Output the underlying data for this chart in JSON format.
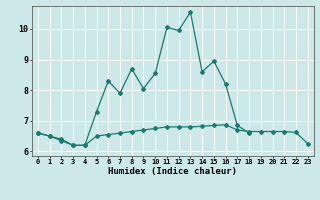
{
  "xlabel": "Humidex (Indice chaleur)",
  "x_values": [
    0,
    1,
    2,
    3,
    4,
    5,
    6,
    7,
    8,
    9,
    10,
    11,
    12,
    13,
    14,
    15,
    16,
    17,
    18,
    19,
    20,
    21,
    22,
    23
  ],
  "line1_y": [
    6.6,
    6.5,
    6.4,
    6.2,
    6.2,
    6.5,
    6.55,
    6.6,
    6.65,
    6.7,
    6.75,
    6.8,
    6.8,
    6.8,
    6.82,
    6.85,
    6.87,
    6.7,
    6.65,
    6.65,
    6.65,
    6.65,
    6.62,
    6.25
  ],
  "line2_y": [
    6.6,
    6.5,
    6.35,
    6.2,
    6.2,
    7.3,
    8.3,
    7.9,
    8.7,
    8.05,
    8.55,
    10.05,
    9.95,
    10.55,
    8.6,
    8.95,
    8.2,
    6.85,
    6.6,
    null,
    null,
    null,
    null,
    null
  ],
  "line_color": "#1a7a6e",
  "bg_color": "#cce8e8",
  "grid_color": "#ffffff",
  "ylim": [
    5.85,
    10.75
  ],
  "yticks": [
    6,
    7,
    8,
    9,
    10
  ],
  "xlim": [
    -0.5,
    23.5
  ],
  "marker_size": 2.0
}
